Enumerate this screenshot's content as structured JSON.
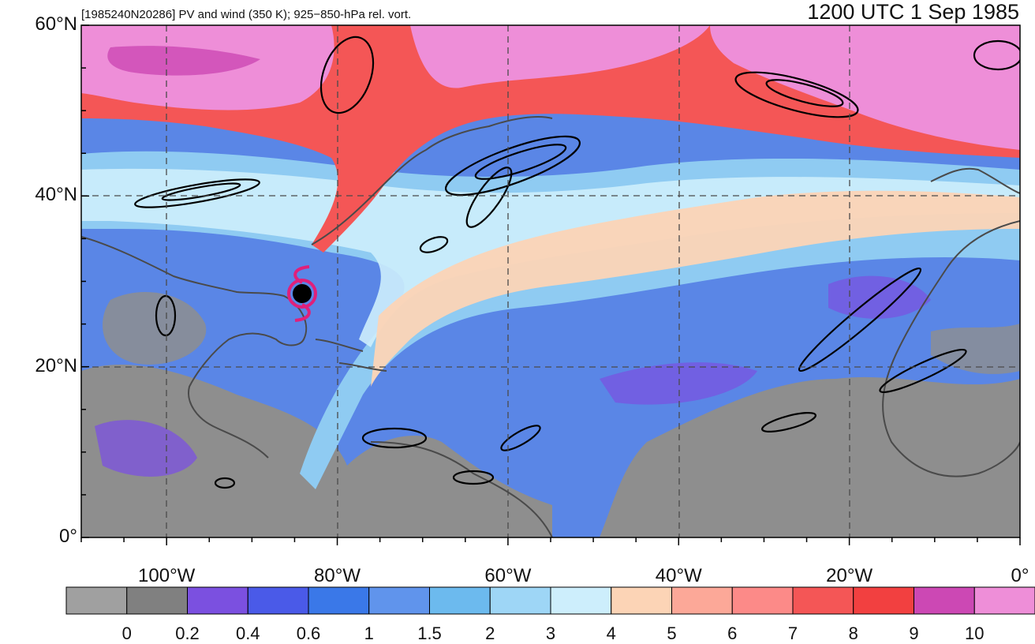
{
  "header": {
    "left_title": "[1985240N20286] PV and wind (350 K); 925−850-hPa rel. vort.",
    "right_title": "1200 UTC 1 Sep 1985"
  },
  "map": {
    "lon_range": [
      -110,
      0
    ],
    "lat_range": [
      0,
      60
    ],
    "lat_ticks": [
      {
        "value": 60,
        "label": "60°N"
      },
      {
        "value": 40,
        "label": "40°N"
      },
      {
        "value": 20,
        "label": "20°N"
      },
      {
        "value": 0,
        "label": "0°"
      }
    ],
    "lon_ticks": [
      {
        "value": -100,
        "label": "100°W"
      },
      {
        "value": -80,
        "label": "80°W"
      },
      {
        "value": -60,
        "label": "60°W"
      },
      {
        "value": -40,
        "label": "40°W"
      },
      {
        "value": -20,
        "label": "20°W"
      },
      {
        "value": 0,
        "label": "0°"
      }
    ],
    "storm_marker": {
      "lon": -84,
      "lat": 28.5,
      "color": "#e0207a"
    }
  },
  "colorbar": {
    "colors": [
      "#a0a0a0",
      "#808080",
      "#7b50e0",
      "#4a5ae8",
      "#3a78e8",
      "#6094ec",
      "#6cbaee",
      "#9ed6f6",
      "#cdeefc",
      "#fcd4b6",
      "#fca898",
      "#fc8a88",
      "#f45656",
      "#f24040",
      "#cc48b4",
      "#ee8ed8"
    ],
    "labels": [
      "0",
      "0.2",
      "0.4",
      "0.6",
      "1",
      "1.5",
      "2",
      "3",
      "4",
      "5",
      "6",
      "7",
      "8",
      "9",
      "10"
    ]
  }
}
